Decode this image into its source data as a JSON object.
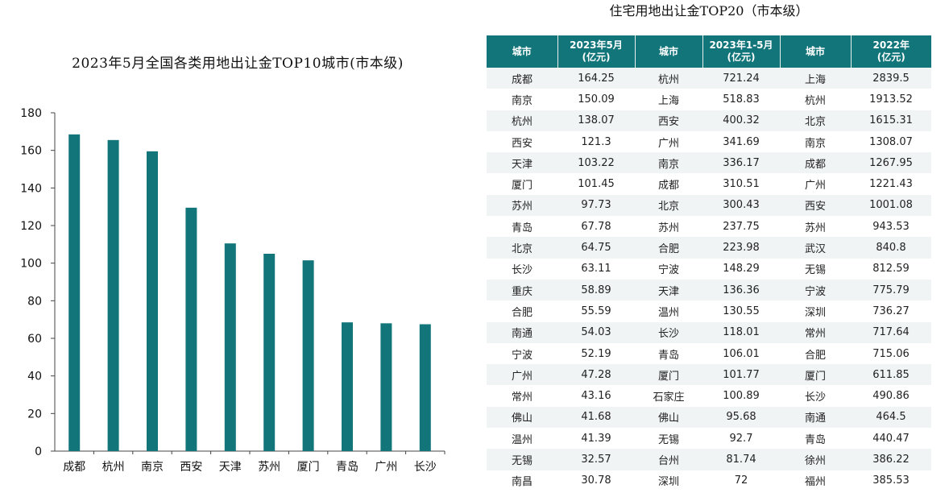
{
  "chart_data": {
    "type": "bar",
    "title": "2023年5月全国各类用地出让金TOP10城市(市本级)",
    "categories": [
      "成都",
      "杭州",
      "南京",
      "西安",
      "天津",
      "苏州",
      "厦门",
      "青岛",
      "广州",
      "长沙"
    ],
    "values": [
      168.5,
      165.5,
      159.5,
      129.5,
      110.5,
      105.0,
      101.5,
      68.5,
      68.0,
      67.5
    ],
    "ylim": [
      0,
      180
    ],
    "yticks": [
      0,
      20,
      40,
      60,
      80,
      100,
      120,
      140,
      160,
      180
    ],
    "color": "#12757a",
    "grid": false
  },
  "table": {
    "title": "住宅用地出让金TOP20（市本级）",
    "headers": [
      {
        "line1": "城市",
        "line2": ""
      },
      {
        "line1": "2023年5月",
        "line2": "(亿元)"
      },
      {
        "line1": "城市",
        "line2": ""
      },
      {
        "line1": "2023年1-5月",
        "line2": "(亿元)"
      },
      {
        "line1": "城市",
        "line2": ""
      },
      {
        "line1": "2022年",
        "line2": "(亿元)"
      }
    ],
    "rows": [
      [
        "成都",
        "164.25",
        "杭州",
        "721.24",
        "上海",
        "2839.5"
      ],
      [
        "南京",
        "150.09",
        "上海",
        "518.83",
        "杭州",
        "1913.52"
      ],
      [
        "杭州",
        "138.07",
        "西安",
        "400.32",
        "北京",
        "1615.31"
      ],
      [
        "西安",
        "121.3",
        "广州",
        "341.69",
        "南京",
        "1308.07"
      ],
      [
        "天津",
        "103.22",
        "南京",
        "336.17",
        "成都",
        "1267.95"
      ],
      [
        "厦门",
        "101.45",
        "成都",
        "310.51",
        "广州",
        "1221.43"
      ],
      [
        "苏州",
        "97.73",
        "北京",
        "300.43",
        "西安",
        "1001.08"
      ],
      [
        "青岛",
        "67.78",
        "苏州",
        "237.75",
        "苏州",
        "943.53"
      ],
      [
        "北京",
        "64.75",
        "合肥",
        "223.98",
        "武汉",
        "840.8"
      ],
      [
        "长沙",
        "63.11",
        "宁波",
        "148.29",
        "无锡",
        "812.59"
      ],
      [
        "重庆",
        "58.89",
        "天津",
        "136.36",
        "宁波",
        "775.79"
      ],
      [
        "合肥",
        "55.59",
        "温州",
        "130.55",
        "深圳",
        "736.27"
      ],
      [
        "南通",
        "54.03",
        "长沙",
        "118.01",
        "常州",
        "717.64"
      ],
      [
        "宁波",
        "52.19",
        "青岛",
        "106.01",
        "合肥",
        "715.06"
      ],
      [
        "广州",
        "47.28",
        "厦门",
        "101.77",
        "厦门",
        "611.85"
      ],
      [
        "常州",
        "43.16",
        "石家庄",
        "100.89",
        "长沙",
        "490.86"
      ],
      [
        "佛山",
        "41.68",
        "佛山",
        "95.68",
        "南通",
        "464.5"
      ],
      [
        "温州",
        "41.39",
        "无锡",
        "92.7",
        "青岛",
        "440.47"
      ],
      [
        "无锡",
        "32.57",
        "台州",
        "81.74",
        "徐州",
        "386.22"
      ],
      [
        "南昌",
        "30.78",
        "深圳",
        "72",
        "福州",
        "385.53"
      ]
    ]
  }
}
